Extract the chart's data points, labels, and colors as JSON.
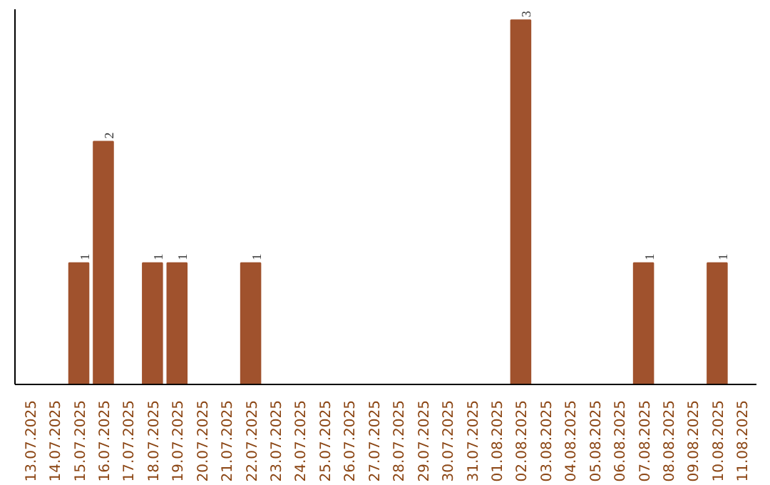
{
  "chart_data": {
    "type": "bar",
    "categories": [
      "13.07.2025",
      "14.07.2025",
      "15.07.2025",
      "16.07.2025",
      "17.07.2025",
      "18.07.2025",
      "19.07.2025",
      "20.07.2025",
      "21.07.2025",
      "22.07.2025",
      "23.07.2025",
      "24.07.2025",
      "25.07.2025",
      "26.07.2025",
      "27.07.2025",
      "28.07.2025",
      "29.07.2025",
      "30.07.2025",
      "31.07.2025",
      "01.08.2025",
      "02.08.2025",
      "03.08.2025",
      "04.08.2025",
      "05.08.2025",
      "06.08.2025",
      "07.08.2025",
      "08.08.2025",
      "09.08.2025",
      "10.08.2025",
      "11.08.2025"
    ],
    "values": [
      0,
      0,
      1,
      2,
      0,
      1,
      1,
      0,
      0,
      1,
      0,
      0,
      0,
      0,
      0,
      0,
      0,
      0,
      0,
      0,
      3,
      0,
      0,
      0,
      0,
      1,
      0,
      0,
      1,
      0
    ],
    "value_labels": [
      null,
      null,
      "1",
      "2",
      null,
      "1",
      "1",
      null,
      null,
      "1",
      null,
      null,
      null,
      null,
      null,
      null,
      null,
      null,
      null,
      null,
      "3",
      null,
      null,
      null,
      null,
      "1",
      null,
      null,
      "1",
      null
    ],
    "color": "#a0522d",
    "grid": false
  }
}
